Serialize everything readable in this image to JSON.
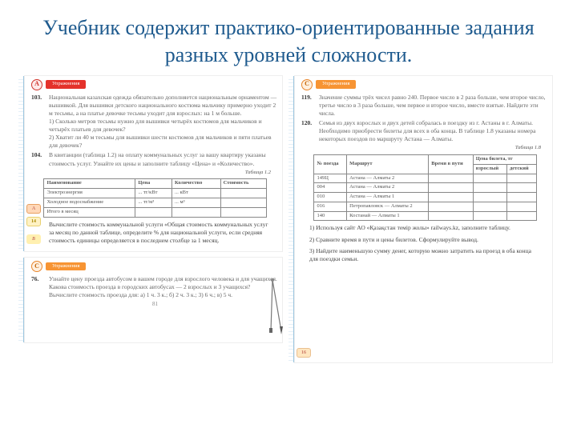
{
  "title": "Учебник содержит практико-ориентированные задания разных уровней сложности.",
  "left": {
    "sectionA": {
      "badge": "A",
      "label": "Упражнения"
    },
    "p103": {
      "num": "103.",
      "text": "Национальная казахская одежда обязательно дополняется национальным орнаментом — вышивкой. Для вышивки детского национального костюма мальчику примерно уходит 2 м тесьмы, а на платье девочке тесьмы уходит для взрослых: на 1 м больше.",
      "sub1": "1) Сколько метров тесьмы нужно для вышивки четырёх костюмов для мальчиков и четырёх платьев для девочек?",
      "sub2": "2) Хватит ли 40 м тесьмы для вышивки шести костюмов для мальчиков и пяти платьев для девочек?"
    },
    "p104": {
      "num": "104.",
      "text": "В квитанции (таблица 1.2) на оплату коммунальных услуг за вашу квартиру указаны стоимость услуг. Узнайте их цены и заполните таблицу «Цена» и «Количество»."
    },
    "tbl12": {
      "caption": "Таблица 1.2",
      "cols": [
        "Наименование",
        "Цена",
        "Количество",
        "Стоимость"
      ],
      "r1": [
        "Электроэнергия",
        "... тг/кВт",
        "... кВт",
        ""
      ],
      "r2": [
        "Холодное водоснабжение",
        "... тг/м³",
        "... м³",
        ""
      ],
      "r3": [
        "Итого в месяц",
        "",
        "",
        ""
      ]
    },
    "tagA": "А",
    "tag14": "14",
    "tagB": "B",
    "blurb": "Вычислите стоимость коммунальной услуги «Общая стоимость коммунальных услуг за месяц по данной таблице, определите % для национальной услуги, если средняя стоимость единицы определяется в последнем столбце за 1 месяц.",
    "sectionC": {
      "badge": "C",
      "label": "Упражнения"
    },
    "p76": {
      "num": "76.",
      "text": "Узнайте цену проезда автобусом в вашем городе для взрослого человека и для учащихся. Какова стоимость проезда в городских автобусах — 2 взрослых и 3 учащихся? Вычислите стоимость проезда для: а) 1 ч. 3 к.; б) 2 ч. 3 к.; 3) 6 ч.; в) 5 ч."
    },
    "pagenum": "81"
  },
  "right": {
    "sectionC": {
      "badge": "C",
      "label": "Упражнения"
    },
    "p119": {
      "num": "119.",
      "text": "Значение суммы трёх чисел равно 240. Первое число в 2 раза больше, чем второе число, третье число в 3 раза больше, чем первое и второе число, вместе взятые. Найдите эти числа."
    },
    "p120": {
      "num": "120.",
      "text": "Семья из двух взрослых и двух детей собралась в поездку из г. Астаны в г. Алматы. Необходимо приобрести билеты для всех в оба конца. В таблице 1.8 указаны номера некоторых поездов по маршруту Астана — Алматы."
    },
    "tbl18": {
      "caption": "Таблица 1.8",
      "h1": "№ поезда",
      "h2": "Маршрут",
      "h3": "Время в пути",
      "h4a": "взрослый",
      "h4b": "детский",
      "h4top": "Цена билета, тг",
      "rows": [
        [
          "149Ц",
          "Астана — Алматы 2",
          "",
          ""
        ],
        [
          "004",
          "Астана — Алматы 2",
          "",
          ""
        ],
        [
          "010",
          "Астана — Алматы 1",
          "",
          ""
        ],
        [
          "016",
          "Петропавловск — Алматы 2",
          "",
          ""
        ],
        [
          "140",
          "Костанай — Алматы 1",
          "",
          ""
        ]
      ]
    },
    "q1": "1) Используя сайт АО «Қазақстан темір жолы» railways.kz, заполните таблицу.",
    "q2": "2) Сравните время в пути и цены билетов. Сформулируйте вывод.",
    "q3": "3) Найдите наименьшую сумму денег, которую можно затратить на проезд в оба конца для поездки семьи.",
    "tag16": "16"
  }
}
